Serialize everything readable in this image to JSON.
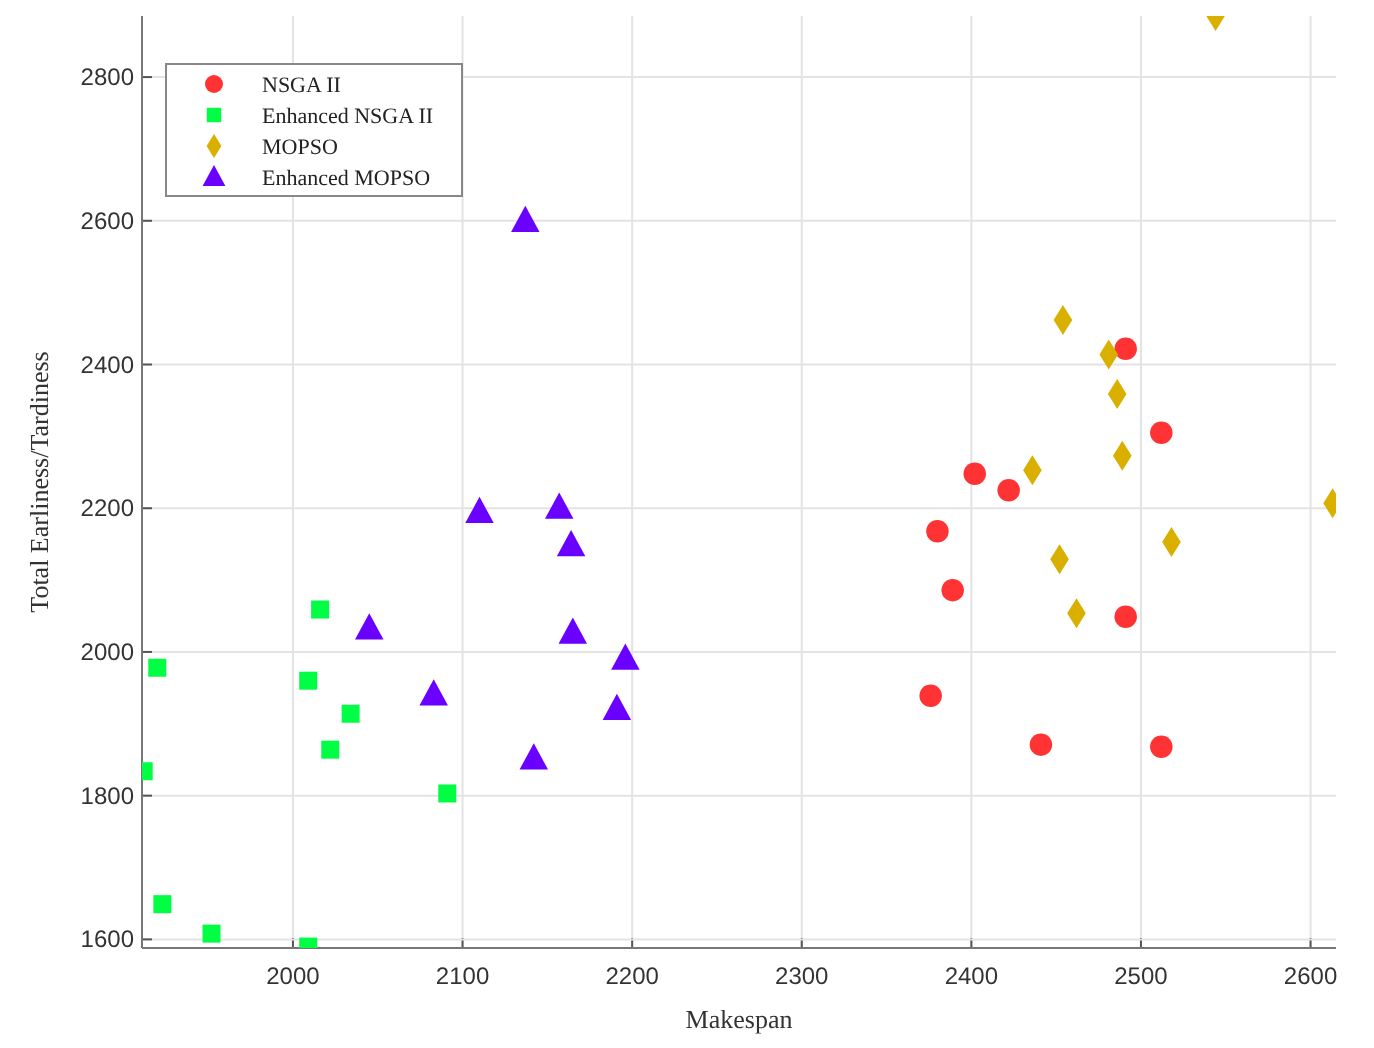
{
  "chart_data": {
    "type": "scatter",
    "xlabel": "Makespan",
    "ylabel": "Total Earliness/Tardiness",
    "xlim": [
      1911,
      2615
    ],
    "ylim": [
      1588,
      2885
    ],
    "xticks": [
      2000,
      2100,
      2200,
      2300,
      2400,
      2500,
      2600
    ],
    "yticks": [
      1600,
      1800,
      2000,
      2200,
      2400,
      2600,
      2800
    ],
    "grid": true,
    "legend": "top left",
    "series": [
      {
        "name": "NSGA II",
        "color": "#ff3333",
        "marker": "circle",
        "x": [
          2491,
          2512,
          2402,
          2422,
          2380,
          2389,
          2491,
          2376,
          2441,
          2512
        ],
        "values": [
          2422,
          2305,
          2248,
          2225,
          2168,
          2086,
          2049,
          1939,
          1871,
          1868
        ]
      },
      {
        "name": "Enhanced NSGA II",
        "color": "#00ff44",
        "marker": "square",
        "x": [
          2016,
          1920,
          2009,
          2034,
          2022,
          1912,
          2091,
          1923,
          1952,
          2009
        ],
        "values": [
          2059,
          1978,
          1960,
          1914,
          1864,
          1834,
          1803,
          1649,
          1608,
          1590
        ]
      },
      {
        "name": "MOPSO",
        "color": "#d9b000",
        "marker": "diamond",
        "x": [
          2544,
          2454,
          2481,
          2486,
          2436,
          2489,
          2613,
          2518,
          2452,
          2462
        ],
        "values": [
          2885,
          2462,
          2414,
          2359,
          2253,
          2273,
          2207,
          2153,
          2129,
          2054
        ]
      },
      {
        "name": "Enhanced MOPSO",
        "color": "#6a00ff",
        "marker": "triangle",
        "x": [
          2137,
          2110,
          2157,
          2164,
          2045,
          2165,
          2196,
          2083,
          2191,
          2142
        ],
        "values": [
          2600,
          2195,
          2201,
          2149,
          2033,
          2027,
          1991,
          1941,
          1921,
          1852
        ]
      }
    ]
  }
}
